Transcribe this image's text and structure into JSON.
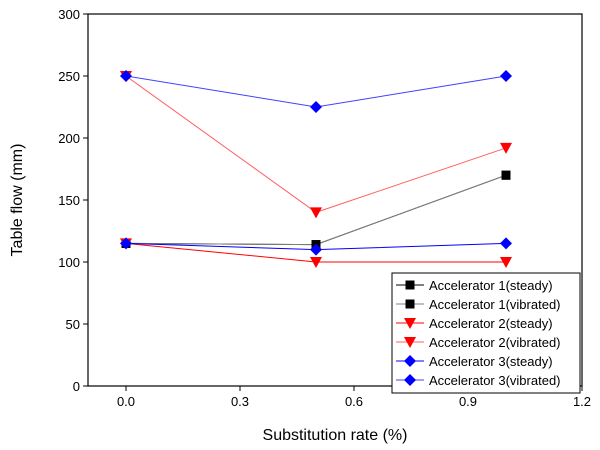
{
  "chart_data": {
    "type": "line",
    "xlabel": "Substitution rate (%)",
    "ylabel": "Table flow (mm)",
    "xlim": [
      -0.1,
      1.2
    ],
    "ylim": [
      0,
      300
    ],
    "xticks": [
      "0.0",
      "0.3",
      "0.6",
      "0.9",
      "1.2"
    ],
    "yticks": [
      "0",
      "50",
      "100",
      "150",
      "200",
      "250",
      "300"
    ],
    "grid": false,
    "legend_placement": "bottom-right",
    "x": [
      0,
      0.5,
      1.0
    ],
    "series": [
      {
        "name": "Accelerator 1(steady)",
        "values": [
          115,
          114,
          170
        ],
        "color": "#000000",
        "marker": "square"
      },
      {
        "name": "Accelerator 1(vibrated)",
        "values": [
          115,
          114,
          170
        ],
        "color": "#808080",
        "marker": "square"
      },
      {
        "name": "Accelerator 2(steady)",
        "values": [
          115,
          100,
          100
        ],
        "color": "#ff0000",
        "marker": "triangle-down"
      },
      {
        "name": "Accelerator 2(vibrated)",
        "values": [
          250,
          140,
          192
        ],
        "color": "#ff6060",
        "marker": "triangle-down"
      },
      {
        "name": "Accelerator 3(steady)",
        "values": [
          115,
          110,
          115
        ],
        "color": "#0000ff",
        "marker": "diamond"
      },
      {
        "name": "Accelerator 3(vibrated)",
        "values": [
          250,
          225,
          250
        ],
        "color": "#4040ff",
        "marker": "diamond"
      }
    ]
  }
}
